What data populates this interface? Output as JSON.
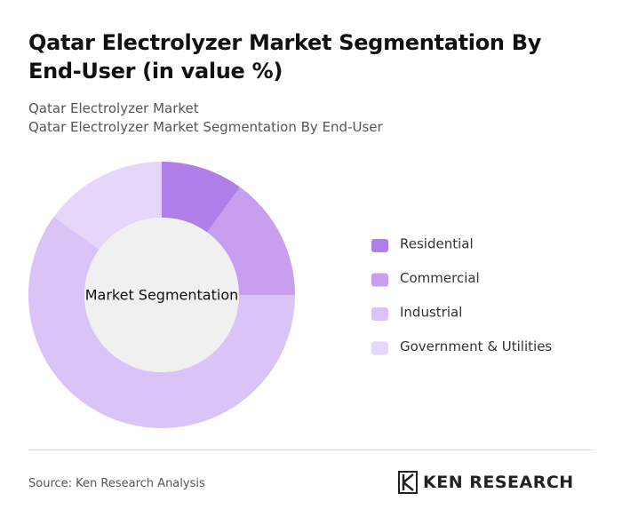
{
  "chart_data": {
    "type": "donut",
    "title": "Qatar Electrolyzer Market Segmentation By End-User (in value %)",
    "subtitle": "Qatar Electrolyzer Market",
    "subtitle2": "Qatar Electrolyzer Market Segmentation By End-User",
    "center_label": "Market Segmentation",
    "categories": [
      "Residential",
      "Commercial",
      "Industrial",
      "Government & Utilities"
    ],
    "values": [
      10,
      15,
      60,
      15
    ],
    "colors": [
      "#b07ee8",
      "#c79ef0",
      "#dac3f6",
      "#e6d6f8"
    ]
  },
  "source": "Source: Ken Research Analysis",
  "logo": "KEN RESEARCH"
}
